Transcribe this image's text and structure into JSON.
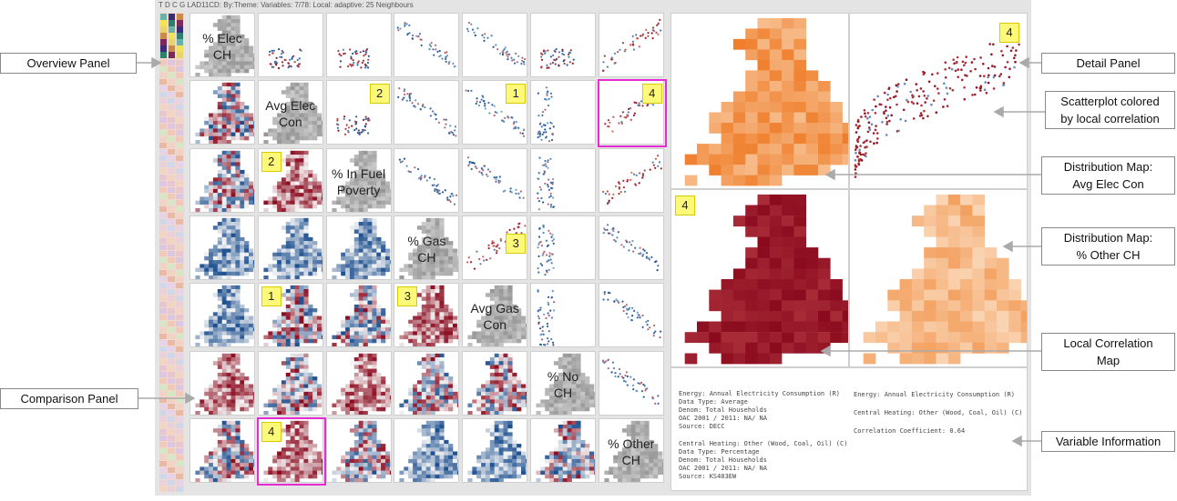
{
  "title_bar": "T D C G LAD11CD: By:Theme: Variables: 7/78: Local: adaptive: 25 Neighbours",
  "variables": [
    "% Elec CH",
    "Avg Elec Con",
    "% In Fuel Poverty",
    "% Gas CH",
    "Avg Gas Con",
    "% No CH",
    "% Other CH"
  ],
  "diag_lines": [
    [
      "% Elec",
      "CH"
    ],
    [
      "Avg Elec",
      "Con"
    ],
    [
      "% In Fuel",
      "Poverty"
    ],
    [
      "% Gas",
      "CH"
    ],
    [
      "Avg Gas",
      "Con"
    ],
    [
      "% No",
      "CH"
    ],
    [
      "% Other",
      "CH"
    ]
  ],
  "badges": {
    "scatter": [
      {
        "label": "2"
      },
      {
        "label": "1"
      },
      {
        "label": "4"
      },
      {
        "label": "3"
      }
    ],
    "maps": [
      {
        "label": "2"
      },
      {
        "label": "1"
      },
      {
        "label": "3"
      },
      {
        "label": "4"
      }
    ],
    "detail_scatter": "4",
    "detail_map": "4"
  },
  "callouts": [
    {
      "name": "overview-panel",
      "lines": [
        "Overview Panel"
      ]
    },
    {
      "name": "comparison-panel",
      "lines": [
        "Comparison Panel"
      ]
    },
    {
      "name": "detail-panel",
      "lines": [
        "Detail Panel"
      ]
    },
    {
      "name": "scatterplot-colored",
      "lines": [
        "Scatterplot colored",
        "by local correlation"
      ]
    },
    {
      "name": "distribution-map-elec",
      "lines": [
        "Distribution Map:",
        "Avg Elec Con"
      ]
    },
    {
      "name": "distribution-map-other",
      "lines": [
        "Distribution Map:",
        "% Other CH"
      ]
    },
    {
      "name": "local-correlation-map",
      "lines": [
        "Local Correlation",
        "Map"
      ]
    },
    {
      "name": "variable-information",
      "lines": [
        "Variable Information"
      ]
    }
  ],
  "variable_info": {
    "left_block_1": [
      "Energy: Annual Electricity Consumption (R)",
      "Data Type: Average",
      "Denom: Total Households",
      "OAC 2001 / 2011: NA/ NA",
      "Source: DECC"
    ],
    "left_block_2": [
      "Central Heating: Other (Wood, Coal, Oil) (C)",
      "Data Type: Percentage",
      "Denom: Total Households",
      "OAC 2001 / 2011: NA/ NA",
      "Source: KS403EW"
    ],
    "right_block": [
      "Energy: Annual Electricity Consumption (R)",
      "",
      "Central Heating: Other (Wood, Coal, Oil) (C)",
      "",
      "Correlation Coefficient: 0.64"
    ]
  },
  "colors": {
    "highlight": "#e62bd2",
    "badge": "#fff97a",
    "red": "#8b0a1e",
    "blue": "#1c4f8f",
    "orange": "#ef7d2a"
  }
}
